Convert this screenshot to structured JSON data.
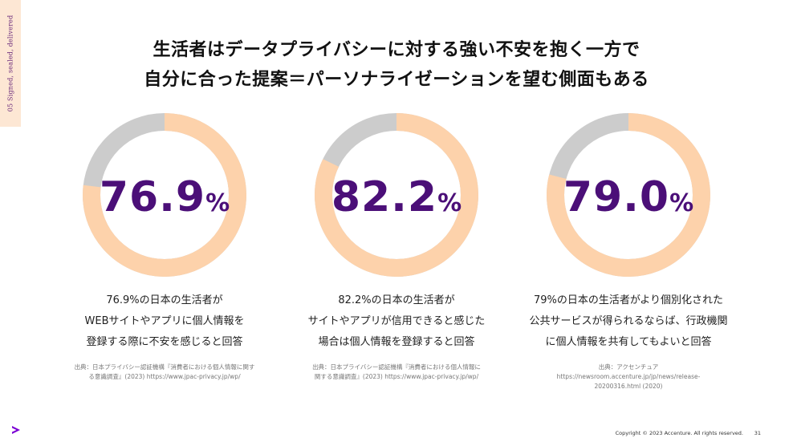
{
  "side_tab": {
    "label": "05   Signed, sealed, delivered"
  },
  "headline": {
    "line1": "生活者はデータプライバシーに対する強い不安を抱く一方で",
    "line2": "自分に合った提案＝パーソナライゼーションを望む側面もある"
  },
  "colors": {
    "accent": "#4b0f78",
    "ring_fill": "#fdd2ab",
    "ring_rest": "#cccccc",
    "side_tab_bg": "#fde7d4"
  },
  "stats": [
    {
      "value": 76.9,
      "number": "76.9",
      "unit": "%",
      "lines": [
        "76.9%の日本の生活者が",
        "WEBサイトやアプリに個人情報を",
        "登録する際に不安を感じると回答"
      ],
      "source": [
        "出典：日本プライバシー認証機構『消費者における個人情報に関す",
        "る意識調査』(2023) https://www.jpac-privacy.jp/wp/"
      ]
    },
    {
      "value": 82.2,
      "number": "82.2",
      "unit": "%",
      "lines": [
        "82.2%の日本の生活者が",
        "サイトやアプリが信用できると感じた",
        "場合は個人情報を登録すると回答"
      ],
      "source": [
        "出典：日本プライバシー認証機構『消費者における個人情報に",
        "関する意識調査』(2023) https://www.jpac-privacy.jp/wp/"
      ]
    },
    {
      "value": 79.0,
      "number": "79.0",
      "unit": "%",
      "lines": [
        "79%の日本の生活者がより個別化された",
        "公共サービスが得られるならば、行政機関",
        "に個人情報を共有してもよいと回答"
      ],
      "source": [
        "出典：アクセンチュア",
        "https://newsroom.accenture.jp/jp/news/release-",
        "20200316.html (2020)"
      ]
    }
  ],
  "footer": {
    "copyright": "Copyright © 2023 Accenture. All rights reserved.",
    "page_number": "31"
  }
}
